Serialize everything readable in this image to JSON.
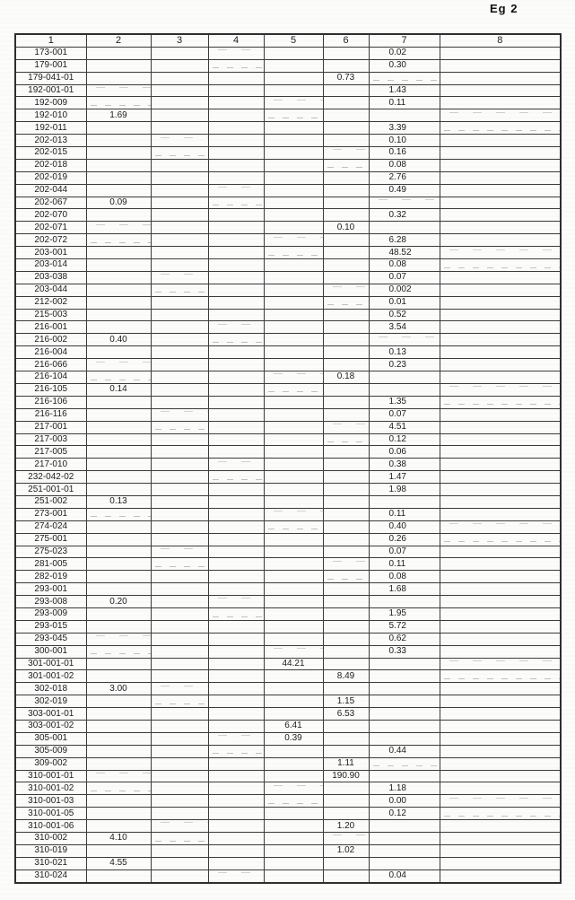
{
  "page": {
    "label": "Eg 2"
  },
  "table": {
    "headers": [
      "1",
      "2",
      "3",
      "4",
      "5",
      "6",
      "7",
      "8"
    ],
    "rows": [
      [
        "173-001",
        "",
        "",
        "",
        "",
        "",
        "0.02",
        ""
      ],
      [
        "179-001",
        "",
        "",
        "",
        "",
        "",
        "0.30",
        ""
      ],
      [
        "179-041-01",
        "",
        "",
        "",
        "",
        "0.73",
        "",
        ""
      ],
      [
        "192-001-01",
        "",
        "",
        "",
        "",
        "",
        "1.43",
        ""
      ],
      [
        "192-009",
        "",
        "",
        "",
        "",
        "",
        "0.11",
        ""
      ],
      [
        "192-010",
        "1.69",
        "",
        "",
        "",
        "",
        "",
        ""
      ],
      [
        "192-011",
        "",
        "",
        "",
        "",
        "",
        "3.39",
        ""
      ],
      [
        "202-013",
        "",
        "",
        "",
        "",
        "",
        "0.10",
        ""
      ],
      [
        "202-015",
        "",
        "",
        "",
        "",
        "",
        "0.16",
        ""
      ],
      [
        "202-018",
        "",
        "",
        "",
        "",
        "",
        "0.08",
        ""
      ],
      [
        "202-019",
        "",
        "",
        "",
        "",
        "",
        "2.76",
        ""
      ],
      [
        "202-044",
        "",
        "",
        "",
        "",
        "",
        "0.49",
        ""
      ],
      [
        "202-067",
        "0.09",
        "",
        "",
        "",
        "",
        "",
        ""
      ],
      [
        "202-070",
        "",
        "",
        "",
        "",
        "",
        "0.32",
        ""
      ],
      [
        "202-071",
        "",
        "",
        "",
        "",
        "0.10",
        "",
        ""
      ],
      [
        "202-072",
        "",
        "",
        "",
        "",
        "",
        "6.28",
        ""
      ],
      [
        "203-001",
        "",
        "",
        "",
        "",
        "",
        "48.52",
        ""
      ],
      [
        "203-014",
        "",
        "",
        "",
        "",
        "",
        "0.08",
        ""
      ],
      [
        "203-038",
        "",
        "",
        "",
        "",
        "",
        "0.07",
        ""
      ],
      [
        "203-044",
        "",
        "",
        "",
        "",
        "",
        "0.002",
        ""
      ],
      [
        "212-002",
        "",
        "",
        "",
        "",
        "",
        "0.01",
        ""
      ],
      [
        "215-003",
        "",
        "",
        "",
        "",
        "",
        "0.52",
        ""
      ],
      [
        "216-001",
        "",
        "",
        "",
        "",
        "",
        "3.54",
        ""
      ],
      [
        "216-002",
        "0.40",
        "",
        "",
        "",
        "",
        "",
        ""
      ],
      [
        "216-004",
        "",
        "",
        "",
        "",
        "",
        "0.13",
        ""
      ],
      [
        "216-066",
        "",
        "",
        "",
        "",
        "",
        "0.23",
        ""
      ],
      [
        "216-104",
        "",
        "",
        "",
        "",
        "0.18",
        "",
        ""
      ],
      [
        "216-105",
        "0.14",
        "",
        "",
        "",
        "",
        "",
        ""
      ],
      [
        "216-106",
        "",
        "",
        "",
        "",
        "",
        "1.35",
        ""
      ],
      [
        "216-116",
        "",
        "",
        "",
        "",
        "",
        "0.07",
        ""
      ],
      [
        "217-001",
        "",
        "",
        "",
        "",
        "",
        "4.51",
        ""
      ],
      [
        "217-003",
        "",
        "",
        "",
        "",
        "",
        "0.12",
        ""
      ],
      [
        "217-005",
        "",
        "",
        "",
        "",
        "",
        "0.06",
        ""
      ],
      [
        "217-010",
        "",
        "",
        "",
        "",
        "",
        "0.38",
        ""
      ],
      [
        "232-042-02",
        "",
        "",
        "",
        "",
        "",
        "1.47",
        ""
      ],
      [
        "251-001-01",
        "",
        "",
        "",
        "",
        "",
        "1.98",
        ""
      ],
      [
        "251-002",
        "0.13",
        "",
        "",
        "",
        "",
        "",
        ""
      ],
      [
        "273-001",
        "",
        "",
        "",
        "",
        "",
        "0.11",
        ""
      ],
      [
        "274-024",
        "",
        "",
        "",
        "",
        "",
        "0.40",
        ""
      ],
      [
        "275-001",
        "",
        "",
        "",
        "",
        "",
        "0.26",
        ""
      ],
      [
        "275-023",
        "",
        "",
        "",
        "",
        "",
        "0.07",
        ""
      ],
      [
        "281-005",
        "",
        "",
        "",
        "",
        "",
        "0.11",
        ""
      ],
      [
        "282-019",
        "",
        "",
        "",
        "",
        "",
        "0.08",
        ""
      ],
      [
        "293-001",
        "",
        "",
        "",
        "",
        "",
        "1.68",
        ""
      ],
      [
        "293-008",
        "0.20",
        "",
        "",
        "",
        "",
        "",
        ""
      ],
      [
        "293-009",
        "",
        "",
        "",
        "",
        "",
        "1.95",
        ""
      ],
      [
        "293-015",
        "",
        "",
        "",
        "",
        "",
        "5.72",
        ""
      ],
      [
        "293-045",
        "",
        "",
        "",
        "",
        "",
        "0.62",
        ""
      ],
      [
        "300-001",
        "",
        "",
        "",
        "",
        "",
        "0.33",
        ""
      ],
      [
        "301-001-01",
        "",
        "",
        "",
        "44.21",
        "",
        "",
        ""
      ],
      [
        "301-001-02",
        "",
        "",
        "",
        "",
        "8.49",
        "",
        ""
      ],
      [
        "302-018",
        "3.00",
        "",
        "",
        "",
        "",
        "",
        ""
      ],
      [
        "302-019",
        "",
        "",
        "",
        "",
        "1.15",
        "",
        ""
      ],
      [
        "303-001-01",
        "",
        "",
        "",
        "",
        "6.53",
        "",
        ""
      ],
      [
        "303-001-02",
        "",
        "",
        "",
        "6.41",
        "",
        "",
        ""
      ],
      [
        "305-001",
        "",
        "",
        "",
        "0.39",
        "",
        "",
        ""
      ],
      [
        "305-009",
        "",
        "",
        "",
        "",
        "",
        "0.44",
        ""
      ],
      [
        "309-002",
        "",
        "",
        "",
        "",
        "1.11",
        "",
        ""
      ],
      [
        "310-001-01",
        "",
        "",
        "",
        "",
        "190.90",
        "",
        ""
      ],
      [
        "310-001-02",
        "",
        "",
        "",
        "",
        "",
        "1.18",
        ""
      ],
      [
        "310-001-03",
        "",
        "",
        "",
        "",
        "",
        "0.00",
        ""
      ],
      [
        "310-001-05",
        "",
        "",
        "",
        "",
        "",
        "0.12",
        ""
      ],
      [
        "310-001-06",
        "",
        "",
        "",
        "",
        "1.20",
        "",
        ""
      ],
      [
        "310-002",
        "4.10",
        "",
        "",
        "",
        "",
        "",
        ""
      ],
      [
        "310-019",
        "",
        "",
        "",
        "",
        "1.02",
        "",
        ""
      ],
      [
        "310-021",
        "4.55",
        "",
        "",
        "",
        "",
        "",
        ""
      ],
      [
        "310-024",
        "",
        "",
        "",
        "",
        "",
        "0.04",
        ""
      ]
    ]
  }
}
